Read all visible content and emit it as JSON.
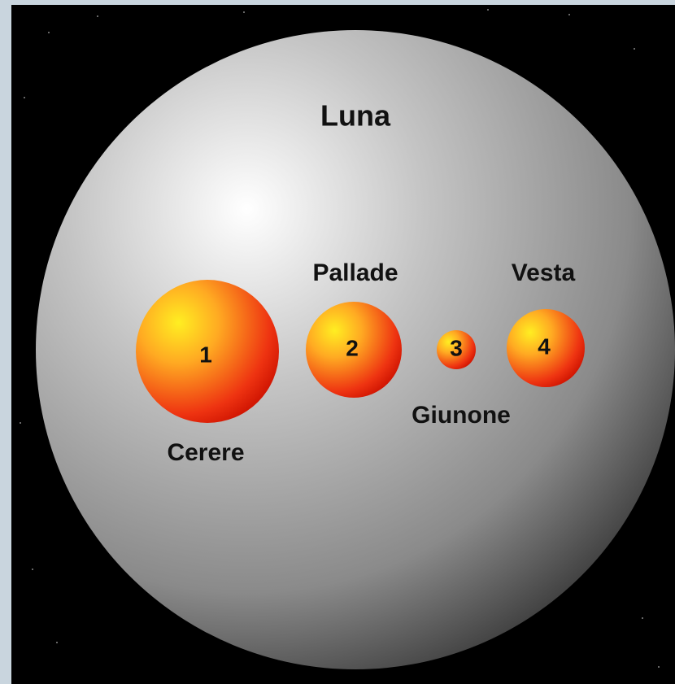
{
  "moon": {
    "label": "Luna"
  },
  "bodies": [
    {
      "number": "1",
      "name": "Cerere"
    },
    {
      "number": "2",
      "name": "Pallade"
    },
    {
      "number": "3",
      "name": "Giunone"
    },
    {
      "number": "4",
      "name": "Vesta"
    }
  ]
}
